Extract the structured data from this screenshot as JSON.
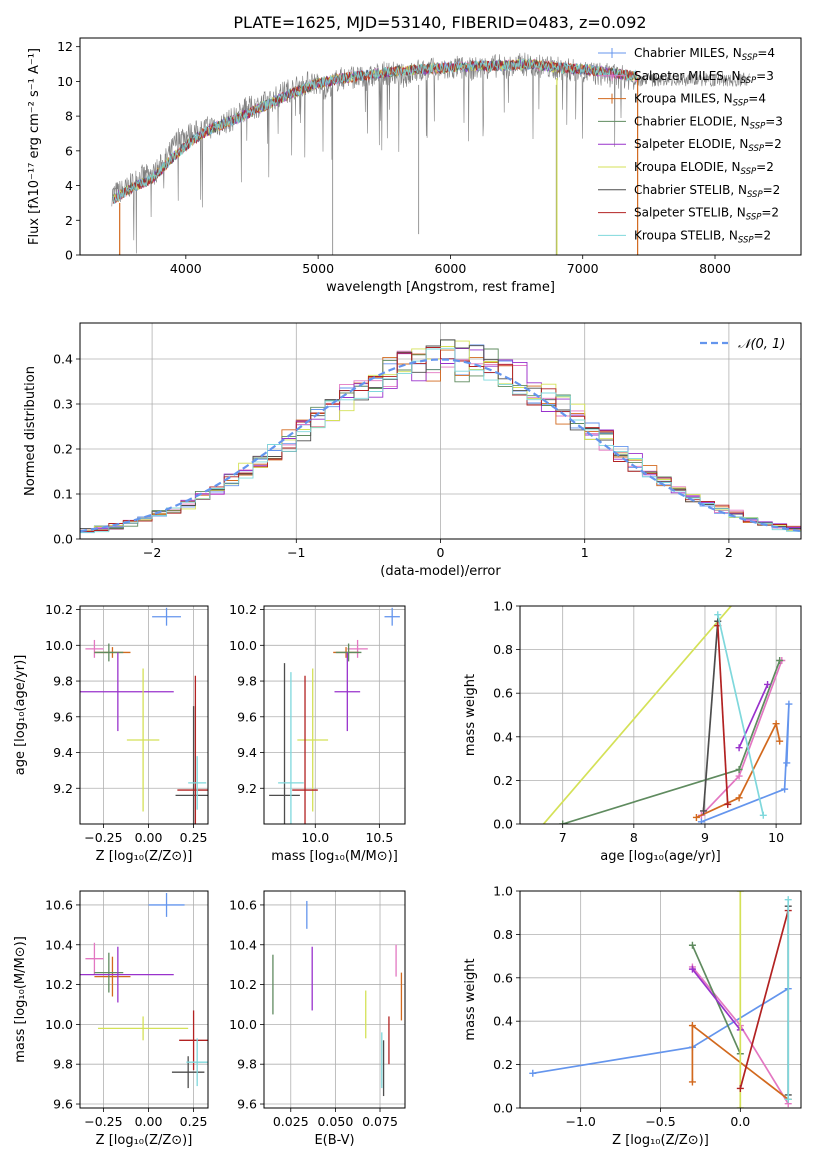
{
  "figure_title": "PLATE=1625, MJD=53140, FIBERID=0483, z=0.092",
  "chart_data": [
    {
      "id": "spectrum",
      "type": "line",
      "xlabel": "wavelength [Angstrom, rest frame]",
      "ylabel": "Flux [fλ10⁻¹⁷ erg cm⁻² s⁻¹ A⁻¹]",
      "xlim": [
        3200,
        8650
      ],
      "ylim": [
        0,
        12.5
      ],
      "xticks": [
        "4000",
        "5000",
        "6000",
        "7000",
        "8000"
      ],
      "yticks": [
        "0",
        "2",
        "4",
        "6",
        "8",
        "10",
        "12"
      ],
      "legend_position": "right",
      "data_grey": {
        "x": [
          3450,
          3550,
          3650,
          3750,
          3850,
          3950,
          4050,
          4150,
          4250,
          4350,
          4450,
          4550,
          4650,
          4750,
          4850,
          4950,
          5050,
          5150,
          5250,
          5350,
          5450,
          5550,
          5650,
          5750,
          5850,
          5950,
          6050,
          6150,
          6250,
          6350,
          6450,
          6550,
          6650,
          6750,
          6850,
          6950,
          7050,
          7150,
          7250,
          7350,
          7400
        ],
        "y": [
          3.5,
          3.8,
          4.5,
          4.6,
          5.5,
          6.8,
          7.0,
          7.3,
          7.5,
          7.8,
          8.4,
          8.6,
          8.9,
          9.4,
          9.7,
          10.0,
          9.6,
          10.1,
          10.3,
          10.1,
          10.4,
          10.5,
          10.3,
          10.6,
          10.7,
          10.6,
          10.8,
          10.7,
          10.8,
          10.9,
          10.8,
          11.0,
          10.9,
          10.8,
          10.7,
          10.6,
          10.5,
          10.4,
          10.3,
          10.2,
          10.1
        ]
      },
      "model_x": [
        3450,
        3600,
        3750,
        3900,
        4050,
        4200,
        4400,
        4600,
        4800,
        5000,
        5200,
        5400,
        5600,
        5800,
        6000,
        6200,
        6400,
        6600,
        6800,
        7000,
        7200,
        7400,
        7600,
        7800,
        8000,
        8200
      ],
      "model_y": [
        3.2,
        3.9,
        4.4,
        5.6,
        6.6,
        7.3,
        7.9,
        8.6,
        9.3,
        9.9,
        10.2,
        10.4,
        10.6,
        10.7,
        10.8,
        10.9,
        10.9,
        11.0,
        10.8,
        10.7,
        10.5,
        10.3,
        10.0,
        9.8,
        9.6,
        9.4
      ],
      "series": [
        {
          "name": "Chabrier MILES, N",
          "sub": "SSP",
          "suffix": "=4",
          "color": "#6495ED"
        },
        {
          "name": "Salpeter MILES, N",
          "sub": "SSP",
          "suffix": "=3",
          "color": "#E377C2"
        },
        {
          "name": "Kroupa MILES, N",
          "sub": "SSP",
          "suffix": "=4",
          "color": "#D2691E"
        },
        {
          "name": "Chabrier ELODIE, N",
          "sub": "SSP",
          "suffix": "=3",
          "color": "#5F8B5F"
        },
        {
          "name": "Salpeter ELODIE, N",
          "sub": "SSP",
          "suffix": "=2",
          "color": "#9932CC"
        },
        {
          "name": "Kroupa ELODIE, N",
          "sub": "SSP",
          "suffix": "=2",
          "color": "#D4E157"
        },
        {
          "name": "Chabrier STELIB, N",
          "sub": "SSP",
          "suffix": "=2",
          "color": "#4D4D4D"
        },
        {
          "name": "Salpeter STELIB, N",
          "sub": "SSP",
          "suffix": "=2",
          "color": "#B22222"
        },
        {
          "name": "Kroupa STELIB, N",
          "sub": "SSP",
          "suffix": "=2",
          "color": "#7FD8DC"
        }
      ]
    },
    {
      "id": "residuals",
      "type": "line",
      "xlabel": "(data-model)/error",
      "ylabel": "Normed distribution",
      "xlim": [
        -2.5,
        2.5
      ],
      "ylim": [
        0,
        0.48
      ],
      "xticks": [
        "−2",
        "−1",
        "0",
        "1",
        "2"
      ],
      "yticks": [
        "0.0",
        "0.1",
        "0.2",
        "0.3",
        "0.4"
      ],
      "legend": "𝒩(0, 1)",
      "legend_position": "top-right",
      "gaussian": {
        "mean": 0,
        "sigma": 1,
        "color": "#6495ED"
      },
      "hist_bin_width": 0.1
    },
    {
      "id": "age_vs_Z",
      "type": "scatter",
      "xlabel": "Z [log₁₀(Z/Z⊙)]",
      "ylabel": "age  [log₁₀(age/yr)]",
      "xlim": [
        -0.38,
        0.33
      ],
      "ylim": [
        9.0,
        10.22
      ],
      "xticks": [
        "−0.25",
        "0.00",
        "0.25"
      ],
      "yticks": [
        "9.2",
        "9.4",
        "9.6",
        "9.8",
        "10.0",
        "10.2"
      ],
      "points": [
        {
          "color": "#6495ED",
          "x": 0.1,
          "y": 10.16,
          "xerr": 0.08,
          "yerr": 0.05
        },
        {
          "color": "#E377C2",
          "x": -0.3,
          "y": 9.98,
          "xerr": 0.05,
          "yerr": 0.05
        },
        {
          "color": "#D2691E",
          "x": -0.2,
          "y": 9.96,
          "xerr": 0.1,
          "yerr": 0.03
        },
        {
          "color": "#5F8B5F",
          "x": -0.22,
          "y": 9.96,
          "xerr": 0.08,
          "yerr": 0.05
        },
        {
          "color": "#9932CC",
          "x": -0.17,
          "y": 9.74,
          "xerr": 0.31,
          "yerr": 0.22
        },
        {
          "color": "#D4E157",
          "x": -0.03,
          "y": 9.47,
          "xerr": 0.09,
          "yerr": 0.4
        },
        {
          "color": "#4D4D4D",
          "x": 0.25,
          "y": 9.16,
          "xerr": 0.1,
          "yerr": 0.5
        },
        {
          "color": "#B22222",
          "x": 0.26,
          "y": 9.19,
          "xerr": 0.1,
          "yerr": 0.64
        },
        {
          "color": "#7FD8DC",
          "x": 0.27,
          "y": 9.23,
          "xerr": 0.05,
          "yerr": 0.15
        }
      ]
    },
    {
      "id": "age_vs_mass",
      "type": "scatter",
      "xlabel": "mass [log₁₀(M/M⊙)]",
      "ylabel": "",
      "xlim": [
        9.6,
        10.7
      ],
      "ylim": [
        9.0,
        10.22
      ],
      "xticks": [
        "10.0",
        "10.5"
      ],
      "yticks": [
        "9.2",
        "9.4",
        "9.6",
        "9.8",
        "10.0",
        "10.2"
      ],
      "points": [
        {
          "color": "#6495ED",
          "x": 10.6,
          "y": 10.16,
          "xerr": 0.06,
          "yerr": 0.05
        },
        {
          "color": "#E377C2",
          "x": 10.33,
          "y": 9.98,
          "xerr": 0.08,
          "yerr": 0.05
        },
        {
          "color": "#D2691E",
          "x": 10.24,
          "y": 9.96,
          "xerr": 0.1,
          "yerr": 0.03
        },
        {
          "color": "#5F8B5F",
          "x": 10.26,
          "y": 9.96,
          "xerr": 0.1,
          "yerr": 0.05
        },
        {
          "color": "#9932CC",
          "x": 10.25,
          "y": 9.74,
          "xerr": 0.1,
          "yerr": 0.22
        },
        {
          "color": "#D4E157",
          "x": 9.98,
          "y": 9.47,
          "xerr": 0.12,
          "yerr": 0.4
        },
        {
          "color": "#4D4D4D",
          "x": 9.76,
          "y": 9.16,
          "xerr": 0.12,
          "yerr": 0.74
        },
        {
          "color": "#B22222",
          "x": 9.92,
          "y": 9.19,
          "xerr": 0.1,
          "yerr": 0.64
        },
        {
          "color": "#7FD8DC",
          "x": 9.81,
          "y": 9.23,
          "xerr": 0.1,
          "yerr": 0.62
        }
      ]
    },
    {
      "id": "massweight_vs_age",
      "type": "line",
      "xlabel": "age  [log₁₀(age/yr)]",
      "ylabel": "mass weight",
      "xlim": [
        6.4,
        10.35
      ],
      "ylim": [
        0,
        1.0
      ],
      "xticks": [
        "7",
        "8",
        "9",
        "10"
      ],
      "yticks": [
        "0.0",
        "0.2",
        "0.4",
        "0.6",
        "0.8",
        "1.0"
      ],
      "series": [
        {
          "color": "#6495ED",
          "x": [
            8.95,
            10.12,
            10.18,
            10.15
          ],
          "y": [
            0.01,
            0.16,
            0.55,
            0.28
          ]
        },
        {
          "color": "#E377C2",
          "x": [
            8.95,
            9.48,
            10.08
          ],
          "y": [
            0.04,
            0.22,
            0.75
          ]
        },
        {
          "color": "#D2691E",
          "x": [
            8.88,
            9.48,
            10.0,
            10.05
          ],
          "y": [
            0.03,
            0.12,
            0.46,
            0.38
          ]
        },
        {
          "color": "#5F8B5F",
          "x": [
            7.0,
            9.48,
            10.05
          ],
          "y": [
            0.0,
            0.25,
            0.75
          ]
        },
        {
          "color": "#9932CC",
          "x": [
            9.48,
            9.88
          ],
          "y": [
            0.35,
            0.64
          ]
        },
        {
          "color": "#D4E157",
          "x": [
            6.6,
            9.5
          ],
          "y": [
            -0.05,
            1.05
          ]
        },
        {
          "color": "#4D4D4D",
          "x": [
            8.98,
            9.18
          ],
          "y": [
            0.06,
            0.93
          ]
        },
        {
          "color": "#B22222",
          "x": [
            9.18,
            9.32
          ],
          "y": [
            0.91,
            0.09
          ]
        },
        {
          "color": "#7FD8DC",
          "x": [
            9.18,
            9.82
          ],
          "y": [
            0.96,
            0.04
          ]
        }
      ]
    },
    {
      "id": "mass_vs_Z",
      "type": "scatter",
      "xlabel": "Z [log₁₀(Z/Z⊙)]",
      "ylabel": "mass [log₁₀(M/M⊙)]",
      "xlim": [
        -0.38,
        0.33
      ],
      "ylim": [
        9.58,
        10.67
      ],
      "xticks": [
        "−0.25",
        "0.00",
        "0.25"
      ],
      "yticks": [
        "9.6",
        "9.8",
        "10.0",
        "10.2",
        "10.4",
        "10.6"
      ],
      "points": [
        {
          "color": "#6495ED",
          "x": 0.1,
          "y": 10.6,
          "xerr": 0.1,
          "yerr": 0.06
        },
        {
          "color": "#E377C2",
          "x": -0.3,
          "y": 10.33,
          "xerr": 0.05,
          "yerr": 0.08
        },
        {
          "color": "#D2691E",
          "x": -0.2,
          "y": 10.24,
          "xerr": 0.1,
          "yerr": 0.1
        },
        {
          "color": "#5F8B5F",
          "x": -0.22,
          "y": 10.26,
          "xerr": 0.08,
          "yerr": 0.1
        },
        {
          "color": "#9932CC",
          "x": -0.17,
          "y": 10.25,
          "xerr": 0.31,
          "yerr": 0.14
        },
        {
          "color": "#D4E157",
          "x": -0.03,
          "y": 9.98,
          "xerr": 0.25,
          "yerr": 0.06
        },
        {
          "color": "#4D4D4D",
          "x": 0.22,
          "y": 9.76,
          "xerr": 0.09,
          "yerr": 0.08
        },
        {
          "color": "#B22222",
          "x": 0.25,
          "y": 9.92,
          "xerr": 0.08,
          "yerr": 0.15
        },
        {
          "color": "#7FD8DC",
          "x": 0.27,
          "y": 9.81,
          "xerr": 0.06,
          "yerr": 0.12
        }
      ]
    },
    {
      "id": "mass_vs_EBV",
      "type": "scatter",
      "xlabel": "E(B-V)",
      "ylabel": "",
      "xlim": [
        0.01,
        0.089
      ],
      "ylim": [
        9.58,
        10.67
      ],
      "xticks": [
        "0.025",
        "0.050",
        "0.075"
      ],
      "yticks": [
        "9.6",
        "9.8",
        "10.0",
        "10.2",
        "10.4",
        "10.6"
      ],
      "points": [
        {
          "color": "#6495ED",
          "x": 0.034,
          "y": 10.55,
          "yerr": 0.07
        },
        {
          "color": "#E377C2",
          "x": 0.084,
          "y": 10.32,
          "yerr": 0.08
        },
        {
          "color": "#D2691E",
          "x": 0.087,
          "y": 10.14,
          "yerr": 0.12
        },
        {
          "color": "#5F8B5F",
          "x": 0.015,
          "y": 10.2,
          "yerr": 0.15
        },
        {
          "color": "#9932CC",
          "x": 0.037,
          "y": 10.23,
          "yerr": 0.16
        },
        {
          "color": "#D4E157",
          "x": 0.067,
          "y": 10.05,
          "yerr": 0.12
        },
        {
          "color": "#4D4D4D",
          "x": 0.077,
          "y": 9.78,
          "yerr": 0.14
        },
        {
          "color": "#B22222",
          "x": 0.08,
          "y": 9.92,
          "yerr": 0.12
        },
        {
          "color": "#7FD8DC",
          "x": 0.076,
          "y": 9.82,
          "yerr": 0.14
        }
      ]
    },
    {
      "id": "massweight_vs_Z",
      "type": "line",
      "xlabel": "Z [log₁₀(Z/Z⊙)]",
      "ylabel": "mass weight",
      "xlim": [
        -1.38,
        0.38
      ],
      "ylim": [
        0,
        1.0
      ],
      "xticks": [
        "−1.0",
        "−0.5",
        "0.0"
      ],
      "yticks": [
        "0.0",
        "0.2",
        "0.4",
        "0.6",
        "0.8",
        "1.0"
      ],
      "series": [
        {
          "color": "#6495ED",
          "x": [
            -1.3,
            -0.3,
            0.3
          ],
          "y": [
            0.16,
            0.28,
            0.55
          ]
        },
        {
          "color": "#E377C2",
          "x": [
            -0.3,
            0.0,
            0.3
          ],
          "y": [
            0.65,
            0.38,
            0.02
          ]
        },
        {
          "color": "#D2691E",
          "x": [
            -0.3,
            -0.3,
            0.3
          ],
          "y": [
            0.12,
            0.38,
            0.04
          ]
        },
        {
          "color": "#5F8B5F",
          "x": [
            -0.3,
            0.0
          ],
          "y": [
            0.75,
            0.25
          ]
        },
        {
          "color": "#9932CC",
          "x": [
            -0.3,
            0.0
          ],
          "y": [
            0.64,
            0.36
          ]
        },
        {
          "color": "#D4E157",
          "x": [
            0.0,
            0.0
          ],
          "y": [
            0.0,
            1.0
          ]
        },
        {
          "color": "#4D4D4D",
          "x": [
            0.3,
            0.3
          ],
          "y": [
            0.06,
            0.93
          ]
        },
        {
          "color": "#B22222",
          "x": [
            0.0,
            0.3
          ],
          "y": [
            0.09,
            0.91
          ]
        },
        {
          "color": "#7FD8DC",
          "x": [
            0.3,
            0.3
          ],
          "y": [
            0.04,
            0.96
          ]
        }
      ]
    }
  ]
}
